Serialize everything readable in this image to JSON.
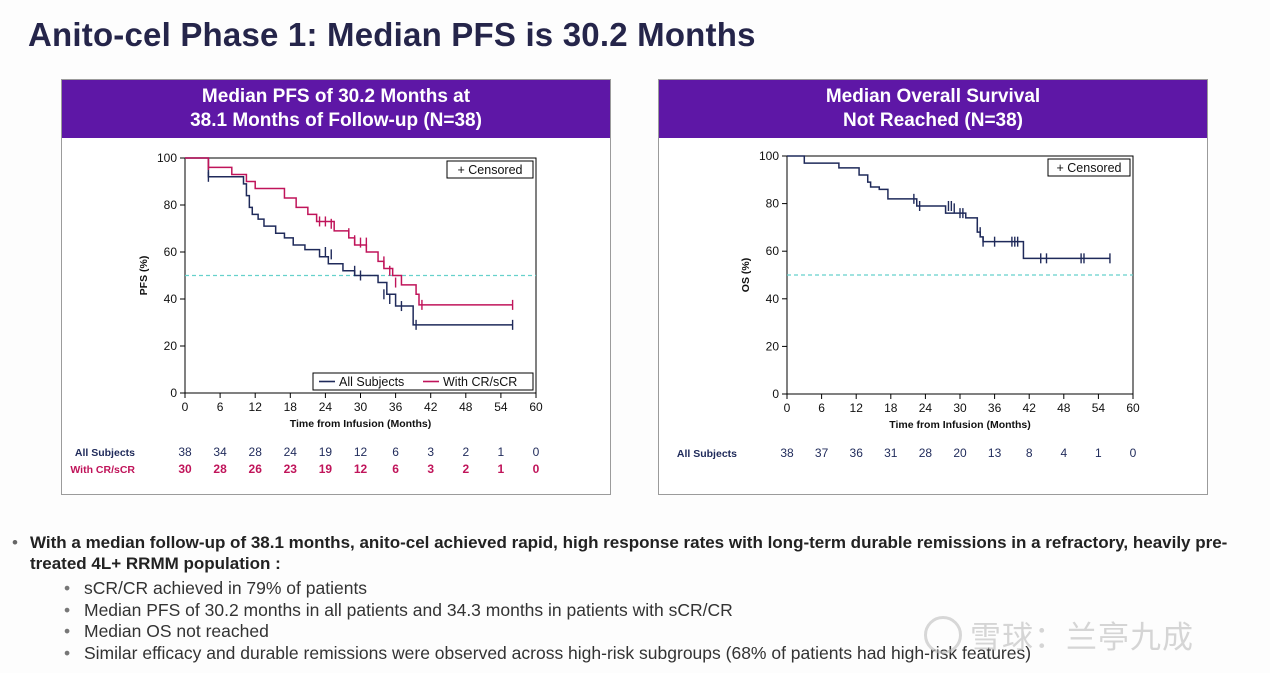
{
  "slide": {
    "title": "Anito-cel Phase 1: Median PFS is 30.2 Months"
  },
  "panels": {
    "pfs": {
      "header_line1": "Median PFS of 30.2 Months at",
      "header_line2": "38.1 Months of Follow-up (N=38)"
    },
    "os": {
      "header_line1": "Median Overall Survival",
      "header_line2": "Not Reached (N=38)"
    }
  },
  "chart_data": [
    {
      "type": "line",
      "id": "pfs",
      "xlabel": "Time from Infusion (Months)",
      "ylabel": "PFS (%)",
      "xlim": [
        0,
        60
      ],
      "ylim": [
        0,
        100
      ],
      "xticks": [
        0,
        6,
        12,
        18,
        24,
        30,
        36,
        42,
        48,
        54,
        60
      ],
      "yticks": [
        0,
        20,
        40,
        60,
        80,
        100
      ],
      "reference_line": 50,
      "reference_color": "#66d1cc",
      "censored_legend": "+ Censored",
      "series": [
        {
          "name": "All Subjects",
          "color": "#1f2a5a",
          "steps": [
            [
              0,
              100
            ],
            [
              4,
              100
            ],
            [
              4,
              92
            ],
            [
              10,
              92
            ],
            [
              10,
              89
            ],
            [
              10.5,
              84
            ],
            [
              11,
              79
            ],
            [
              11.5,
              76
            ],
            [
              12.5,
              74
            ],
            [
              13.5,
              71
            ],
            [
              15.5,
              68
            ],
            [
              17,
              66
            ],
            [
              18.5,
              63
            ],
            [
              20.5,
              61
            ],
            [
              23,
              58
            ],
            [
              24.5,
              55
            ],
            [
              27,
              52
            ],
            [
              29,
              50
            ],
            [
              33,
              47
            ],
            [
              34.5,
              42
            ],
            [
              36,
              37
            ],
            [
              39,
              37
            ],
            [
              39,
              29
            ],
            [
              56,
              29
            ]
          ],
          "censored": [
            [
              4,
              92
            ],
            [
              24,
              60
            ],
            [
              25,
              59
            ],
            [
              29,
              52
            ],
            [
              30,
              50
            ],
            [
              34,
              42
            ],
            [
              35,
              40
            ],
            [
              37,
              37
            ],
            [
              39.5,
              29
            ],
            [
              56,
              29
            ]
          ]
        },
        {
          "name": "With CR/sCR",
          "color": "#c0145a",
          "steps": [
            [
              0,
              100
            ],
            [
              4,
              100
            ],
            [
              4,
              96
            ],
            [
              8,
              96
            ],
            [
              8,
              93
            ],
            [
              10.5,
              90
            ],
            [
              12,
              87
            ],
            [
              17,
              83
            ],
            [
              19,
              79
            ],
            [
              21,
              76
            ],
            [
              22.5,
              73
            ],
            [
              25.5,
              69
            ],
            [
              28,
              66
            ],
            [
              29,
              63
            ],
            [
              31,
              60
            ],
            [
              33,
              56
            ],
            [
              34,
              53
            ],
            [
              35.5,
              50
            ],
            [
              37,
              46
            ],
            [
              39.5,
              42
            ],
            [
              40,
              37.5
            ],
            [
              56,
              37.5
            ]
          ],
          "censored": [
            [
              4,
              97
            ],
            [
              23,
              73
            ],
            [
              24,
              73
            ],
            [
              25,
              72
            ],
            [
              28,
              68
            ],
            [
              29,
              65
            ],
            [
              30,
              64
            ],
            [
              31,
              64
            ],
            [
              34,
              56
            ],
            [
              35,
              52
            ],
            [
              36,
              47
            ],
            [
              40.5,
              37.5
            ],
            [
              56,
              37.5
            ]
          ]
        }
      ],
      "legend": [
        "All Subjects",
        "With CR/sCR"
      ],
      "at_risk": {
        "time_points": [
          0,
          6,
          12,
          18,
          24,
          30,
          36,
          42,
          48,
          54,
          60
        ],
        "rows": [
          {
            "label": "All Subjects",
            "values": [
              38,
              34,
              28,
              24,
              19,
              12,
              6,
              3,
              2,
              1,
              0
            ]
          },
          {
            "label": "With CR/sCR",
            "values": [
              30,
              28,
              26,
              23,
              19,
              12,
              6,
              3,
              2,
              1,
              0
            ]
          }
        ]
      }
    },
    {
      "type": "line",
      "id": "os",
      "xlabel": "Time from Infusion (Months)",
      "ylabel": "OS (%)",
      "xlim": [
        0,
        60
      ],
      "ylim": [
        0,
        100
      ],
      "xticks": [
        0,
        6,
        12,
        18,
        24,
        30,
        36,
        42,
        48,
        54,
        60
      ],
      "yticks": [
        0,
        20,
        40,
        60,
        80,
        100
      ],
      "reference_line": 50,
      "reference_color": "#66d1cc",
      "censored_legend": "+ Censored",
      "series": [
        {
          "name": "All Subjects",
          "color": "#1f2a5a",
          "steps": [
            [
              0,
              100
            ],
            [
              3,
              100
            ],
            [
              3,
              97
            ],
            [
              9,
              97
            ],
            [
              9,
              95
            ],
            [
              12.5,
              95
            ],
            [
              12.5,
              92
            ],
            [
              14,
              89
            ],
            [
              14.5,
              87
            ],
            [
              16,
              86
            ],
            [
              17.5,
              82
            ],
            [
              22,
              82
            ],
            [
              22.5,
              79
            ],
            [
              27,
              79
            ],
            [
              27.5,
              76
            ],
            [
              30,
              76
            ],
            [
              31,
              74
            ],
            [
              33,
              68
            ],
            [
              33.5,
              66
            ],
            [
              34,
              64
            ],
            [
              41,
              64
            ],
            [
              41,
              57
            ],
            [
              56,
              57
            ]
          ],
          "censored": [
            [
              22,
              82
            ],
            [
              23,
              79
            ],
            [
              28,
              79
            ],
            [
              28.5,
              79
            ],
            [
              29,
              78
            ],
            [
              30,
              76
            ],
            [
              30.5,
              76
            ],
            [
              33,
              70
            ],
            [
              33.5,
              68
            ],
            [
              34,
              64
            ],
            [
              36,
              64
            ],
            [
              39,
              64
            ],
            [
              39.5,
              64
            ],
            [
              40,
              64
            ],
            [
              44,
              57
            ],
            [
              45,
              57
            ],
            [
              51,
              57
            ],
            [
              51.5,
              57
            ],
            [
              56,
              57
            ]
          ]
        }
      ],
      "at_risk": {
        "time_points": [
          0,
          6,
          12,
          18,
          24,
          30,
          36,
          42,
          48,
          54,
          60
        ],
        "rows": [
          {
            "label": "All Subjects",
            "values": [
              38,
              37,
              36,
              31,
              28,
              20,
              13,
              8,
              4,
              1,
              0
            ]
          }
        ]
      }
    }
  ],
  "summary": {
    "main_bullet": "With a median follow-up of 38.1 months, anito-cel achieved rapid, high response rates with long-term durable remissions in a refractory, heavily pre-treated 4L+ RRMM population :",
    "sub_bullets": [
      "sCR/CR achieved in 79% of patients",
      "Median PFS of 30.2 months in all patients and 34.3 months in patients with sCR/CR",
      "Median OS not reached",
      "Similar efficacy and durable remissions were observed across high-risk subgroups (68% of patients had high-risk features)"
    ]
  },
  "watermark": {
    "text": "雪球：兰亭九成"
  }
}
